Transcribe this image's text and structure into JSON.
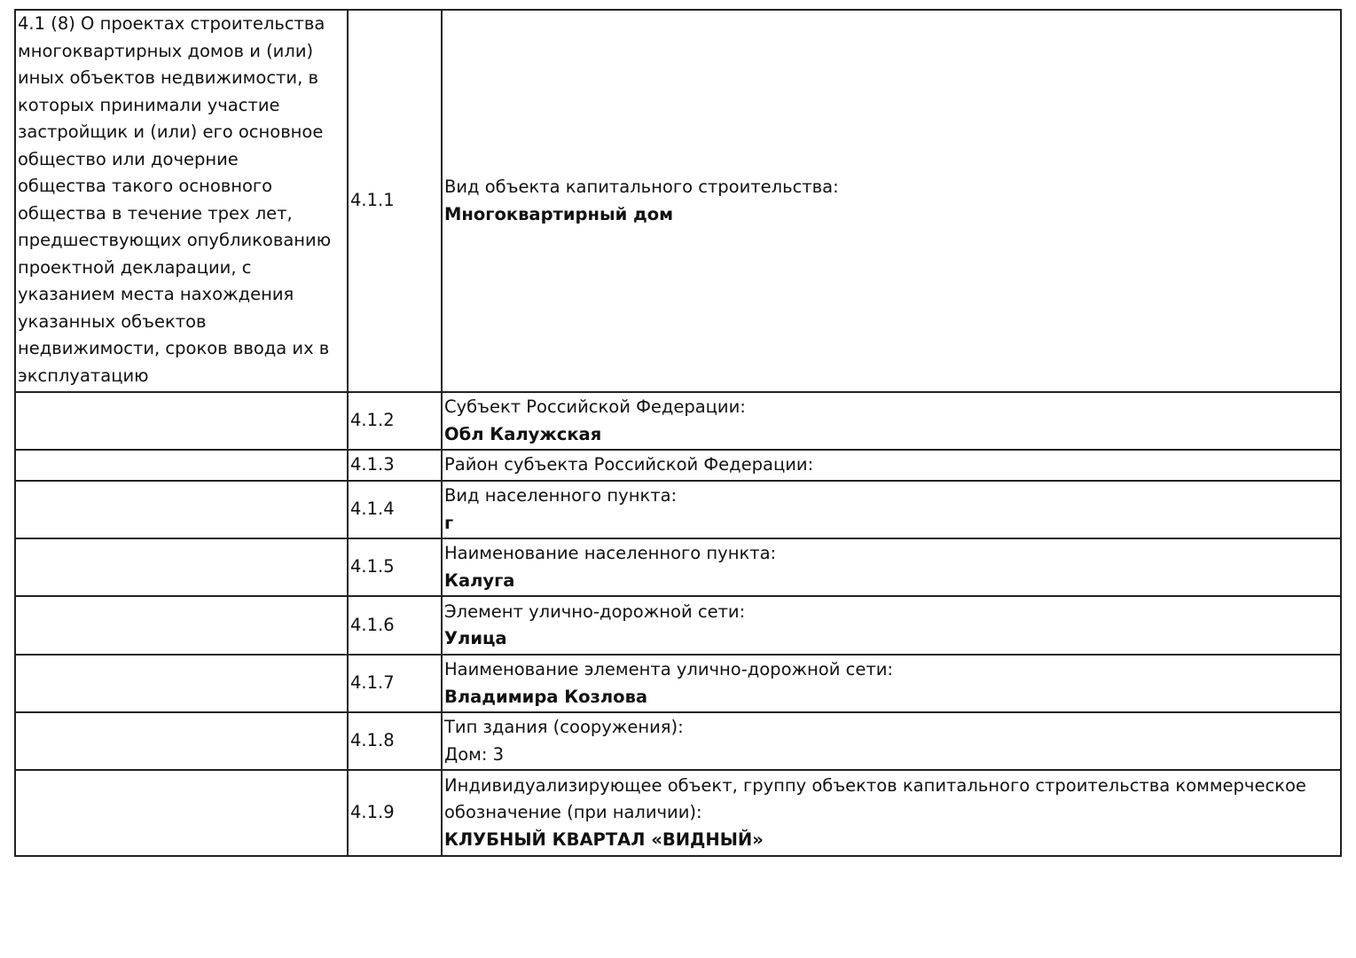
{
  "section": {
    "title_lines": [
      "4.1 (8) О проектах строительства",
      "многоквартирных домов и (или)",
      "иных объектов недвижимости, в",
      "которых принимали участие",
      "застройщик и (или) его основное",
      "общество или дочерние",
      "общества такого основного",
      "общества в течение трех лет,",
      "предшествующих опубликованию",
      "проектной декларации, с",
      "указанием места нахождения",
      "указанных объектов",
      "недвижимости, сроков ввода их в",
      "эксплуатацию"
    ]
  },
  "rows": [
    {
      "num": "4.1.1",
      "label": "Вид объекта капитального строительства:",
      "value": "Многоквартирный дом"
    },
    {
      "num": "4.1.2",
      "label": "Субъект Российской Федерации:",
      "value": "Обл Калужская"
    },
    {
      "num": "4.1.3",
      "label": "Район субъекта Российской Федерации:",
      "value": ""
    },
    {
      "num": "4.1.4",
      "label": "Вид населенного пункта:",
      "value": "г"
    },
    {
      "num": "4.1.5",
      "label": "Наименование населенного пункта:",
      "value": "Калуга"
    },
    {
      "num": "4.1.6",
      "label": "Элемент улично-дорожной сети:",
      "value": "Улица"
    },
    {
      "num": "4.1.7",
      "label": "Наименование элемента улично-дорожной сети:",
      "value": "Владимира Козлова"
    },
    {
      "num": "4.1.8",
      "label": "Тип здания (сооружения):",
      "value_plain": "Дом: 3"
    },
    {
      "num": "4.1.9",
      "label_lines": [
        "Индивидуализирующее объект, группу объектов капитального строительства коммерческое",
        "обозначение (при наличии):"
      ],
      "value": "КЛУБНЫЙ КВАРТАЛ «ВИДНЫЙ»"
    }
  ]
}
